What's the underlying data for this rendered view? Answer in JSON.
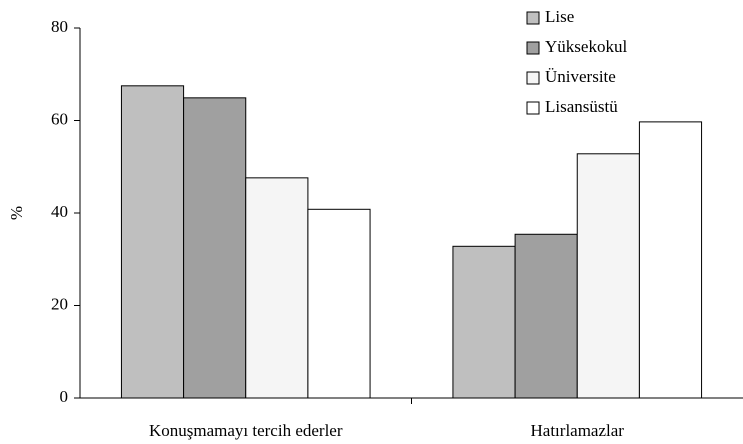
{
  "chart_data": {
    "type": "bar",
    "y_label": "%",
    "categories": [
      "Konuşmamayı tercih ederler",
      "Hatırlamazlar"
    ],
    "series": [
      {
        "name": "Lise",
        "color": "#bfbfbf",
        "values": [
          67.5,
          32.8
        ]
      },
      {
        "name": "Yüksekokul",
        "color": "#a0a0a0",
        "values": [
          64.9,
          35.4
        ]
      },
      {
        "name": "Üniversite",
        "color": "#f5f5f5",
        "values": [
          47.6,
          52.8
        ]
      },
      {
        "name": "Lisansüstü",
        "color": "#ffffff",
        "values": [
          40.8,
          59.7
        ]
      }
    ],
    "ylim": [
      0,
      80
    ],
    "yticks": [
      0,
      20,
      40,
      60,
      80
    ],
    "legend": "top-right"
  }
}
